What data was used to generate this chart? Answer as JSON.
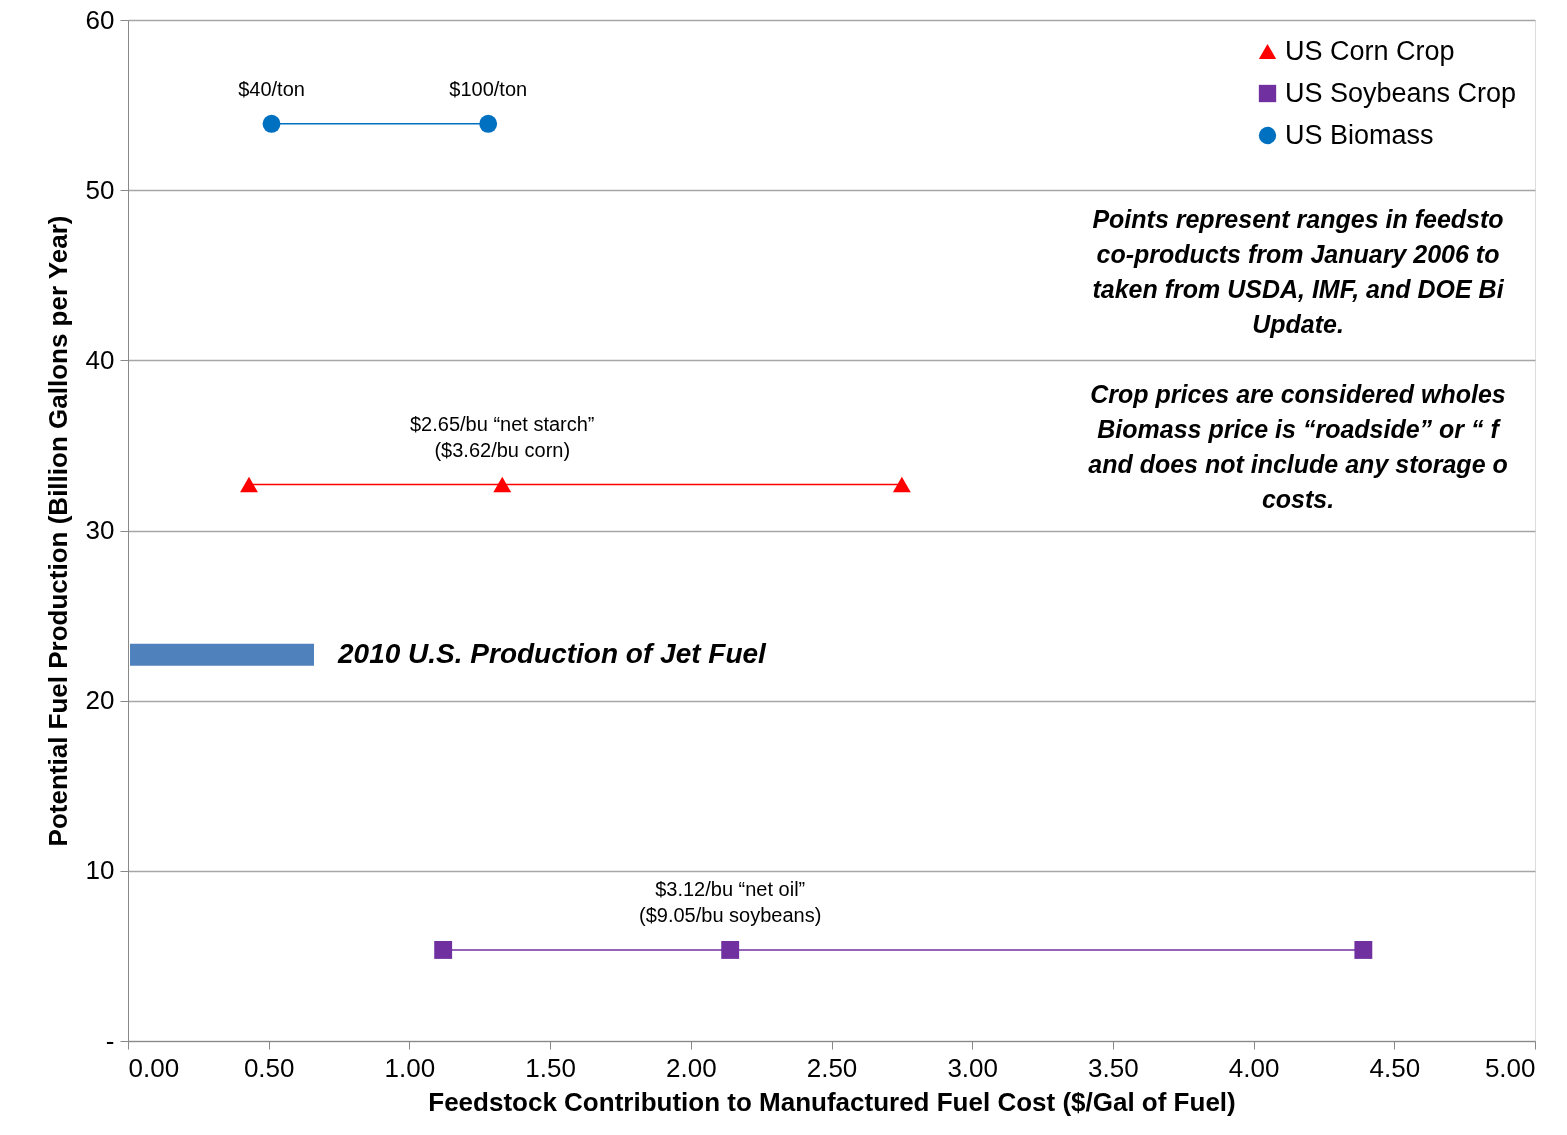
{
  "chart_data": {
    "type": "line",
    "xlabel": "Feedstock Contribution to Manufactured Fuel Cost ($/Gal of Fuel)",
    "ylabel": "Potential  Fuel Production (Billion Gallons per Year)",
    "series": [
      {
        "name": "US Corn Crop",
        "color": "#ff0000",
        "marker": "triangle",
        "x": [
          0.43,
          1.33,
          2.75
        ],
        "values": [
          32.7,
          32.7,
          32.7
        ]
      },
      {
        "name": "US Soybeans Crop",
        "color": "#7030a0",
        "marker": "square",
        "x": [
          1.12,
          2.14,
          4.39
        ],
        "values": [
          5.35,
          5.35,
          5.35
        ]
      },
      {
        "name": "US Biomass",
        "color": "#0070c0",
        "marker": "circle",
        "x": [
          0.51,
          1.28
        ],
        "values": [
          53.9,
          53.9
        ]
      }
    ],
    "xlim": [
      0,
      5
    ],
    "ylim": [
      0,
      60
    ],
    "xticks": [
      {
        "value": 0,
        "label": "0.00"
      },
      {
        "value": 0.5,
        "label": "0.50"
      },
      {
        "value": 1,
        "label": "1.00"
      },
      {
        "value": 1.5,
        "label": "1.50"
      },
      {
        "value": 2,
        "label": "2.00"
      },
      {
        "value": 2.5,
        "label": "2.50"
      },
      {
        "value": 3,
        "label": "3.00"
      },
      {
        "value": 3.5,
        "label": "3.50"
      },
      {
        "value": 4,
        "label": "4.00"
      },
      {
        "value": 4.5,
        "label": "4.50"
      },
      {
        "value": 5,
        "label": "5.00"
      }
    ],
    "yticks": [
      {
        "value": 0,
        "label": "-"
      },
      10,
      20,
      30,
      40,
      50,
      60
    ],
    "grid": "y",
    "legend": "top right",
    "ref_lines": [
      {
        "axis": "y",
        "value": 22.7,
        "label": "2010 U.S. Production of Jet Fuel",
        "color": "#4f81bd"
      }
    ],
    "annotations": [
      {
        "text": "$40/ton",
        "x": 0.51,
        "y": 53.9
      },
      {
        "text": "$100/ton",
        "x": 1.28,
        "y": 53.9
      },
      {
        "text": "$2.65/bu “net starch”\n($3.62/bu corn)",
        "x": 1.33,
        "y": 32.7
      },
      {
        "text": "$3.12/bu “net oil”\n($9.05/bu soybeans)",
        "x": 2.14,
        "y": 5.35
      },
      "Points represent ranges in feedsto\nco-products from January 2006 to\ntaken from USDA, IMF, and DOE Bi\nUpdate.",
      "Crop prices are considered wholes\nBiomass price is “roadside” or “ f\nand does not include any storage o\ncosts."
    ]
  }
}
